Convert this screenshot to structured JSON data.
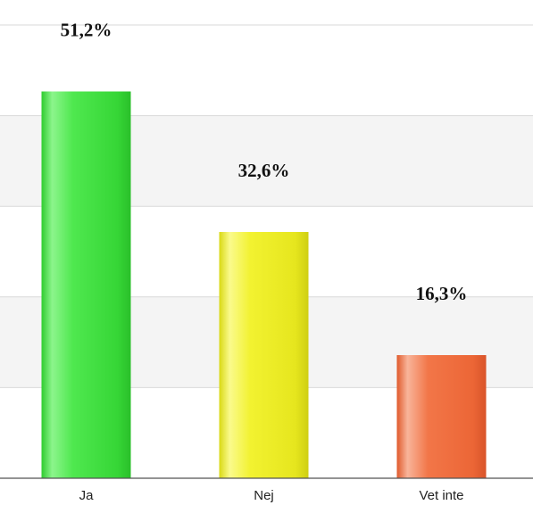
{
  "chart_data": {
    "type": "bar",
    "title": "",
    "xlabel": "",
    "ylabel": "",
    "categories": [
      "Ja",
      "Nej",
      "Vet inte"
    ],
    "values": [
      51.2,
      32.6,
      16.3
    ],
    "value_labels": [
      "51,2%",
      "32,6%",
      "16,3%"
    ],
    "ylim": [
      0,
      60
    ],
    "grid": true,
    "legend": "none",
    "colors": {
      "Ja": "#3ee03e",
      "Nej": "#ecec1c",
      "Vet inte": "#f0683a"
    }
  }
}
